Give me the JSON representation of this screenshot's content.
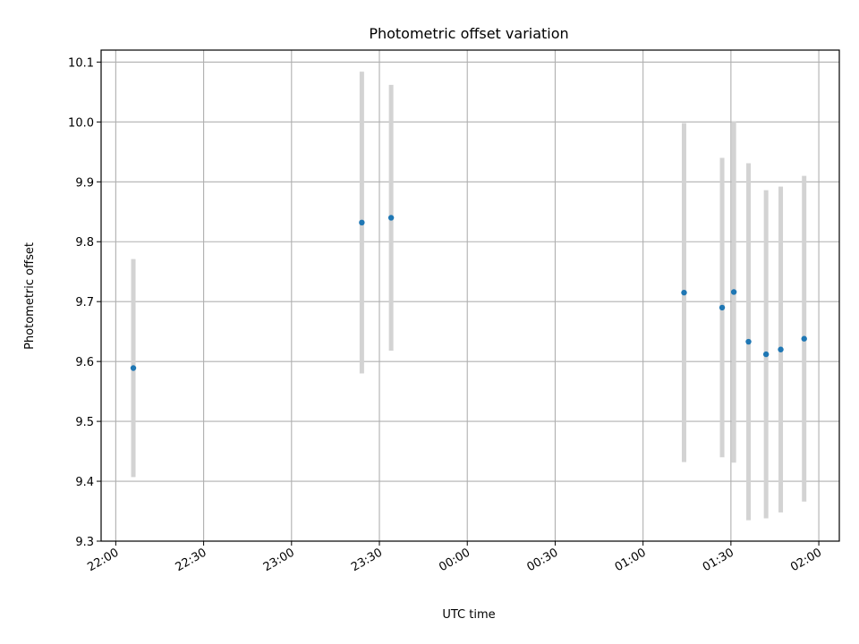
{
  "chart_data": {
    "type": "scatter",
    "title": "Photometric offset variation",
    "xlabel": "UTC time",
    "ylabel": "Photometric offset",
    "x_ticks": [
      "22:00",
      "22:30",
      "23:00",
      "23:30",
      "00:00",
      "00:30",
      "01:00",
      "01:30",
      "02:00"
    ],
    "y_ticks": [
      "9.3",
      "9.4",
      "9.5",
      "9.6",
      "9.7",
      "9.8",
      "9.9",
      "10.0",
      "10.1"
    ],
    "xlim": [
      "21:55",
      "02:07"
    ],
    "ylim": [
      9.3,
      10.12
    ],
    "grid": true,
    "series": [
      {
        "points": [
          {
            "x": "22:06",
            "y": 9.589,
            "err": 0.182
          },
          {
            "x": "23:24",
            "y": 9.832,
            "err": 0.252
          },
          {
            "x": "23:34",
            "y": 9.84,
            "err": 0.222
          },
          {
            "x": "01:14",
            "y": 9.715,
            "err": 0.283
          },
          {
            "x": "01:27",
            "y": 9.69,
            "err": 0.25
          },
          {
            "x": "01:31",
            "y": 9.716,
            "err": 0.285
          },
          {
            "x": "01:36",
            "y": 9.633,
            "err": 0.298
          },
          {
            "x": "01:42",
            "y": 9.612,
            "err": 0.274
          },
          {
            "x": "01:47",
            "y": 9.62,
            "err": 0.272
          },
          {
            "x": "01:55",
            "y": 9.638,
            "err": 0.272
          }
        ]
      }
    ],
    "colors": {
      "marker": "#1f77b4",
      "errorbar": "#d3d3d3",
      "grid": "#b0b0b0",
      "axis": "#000000"
    }
  }
}
